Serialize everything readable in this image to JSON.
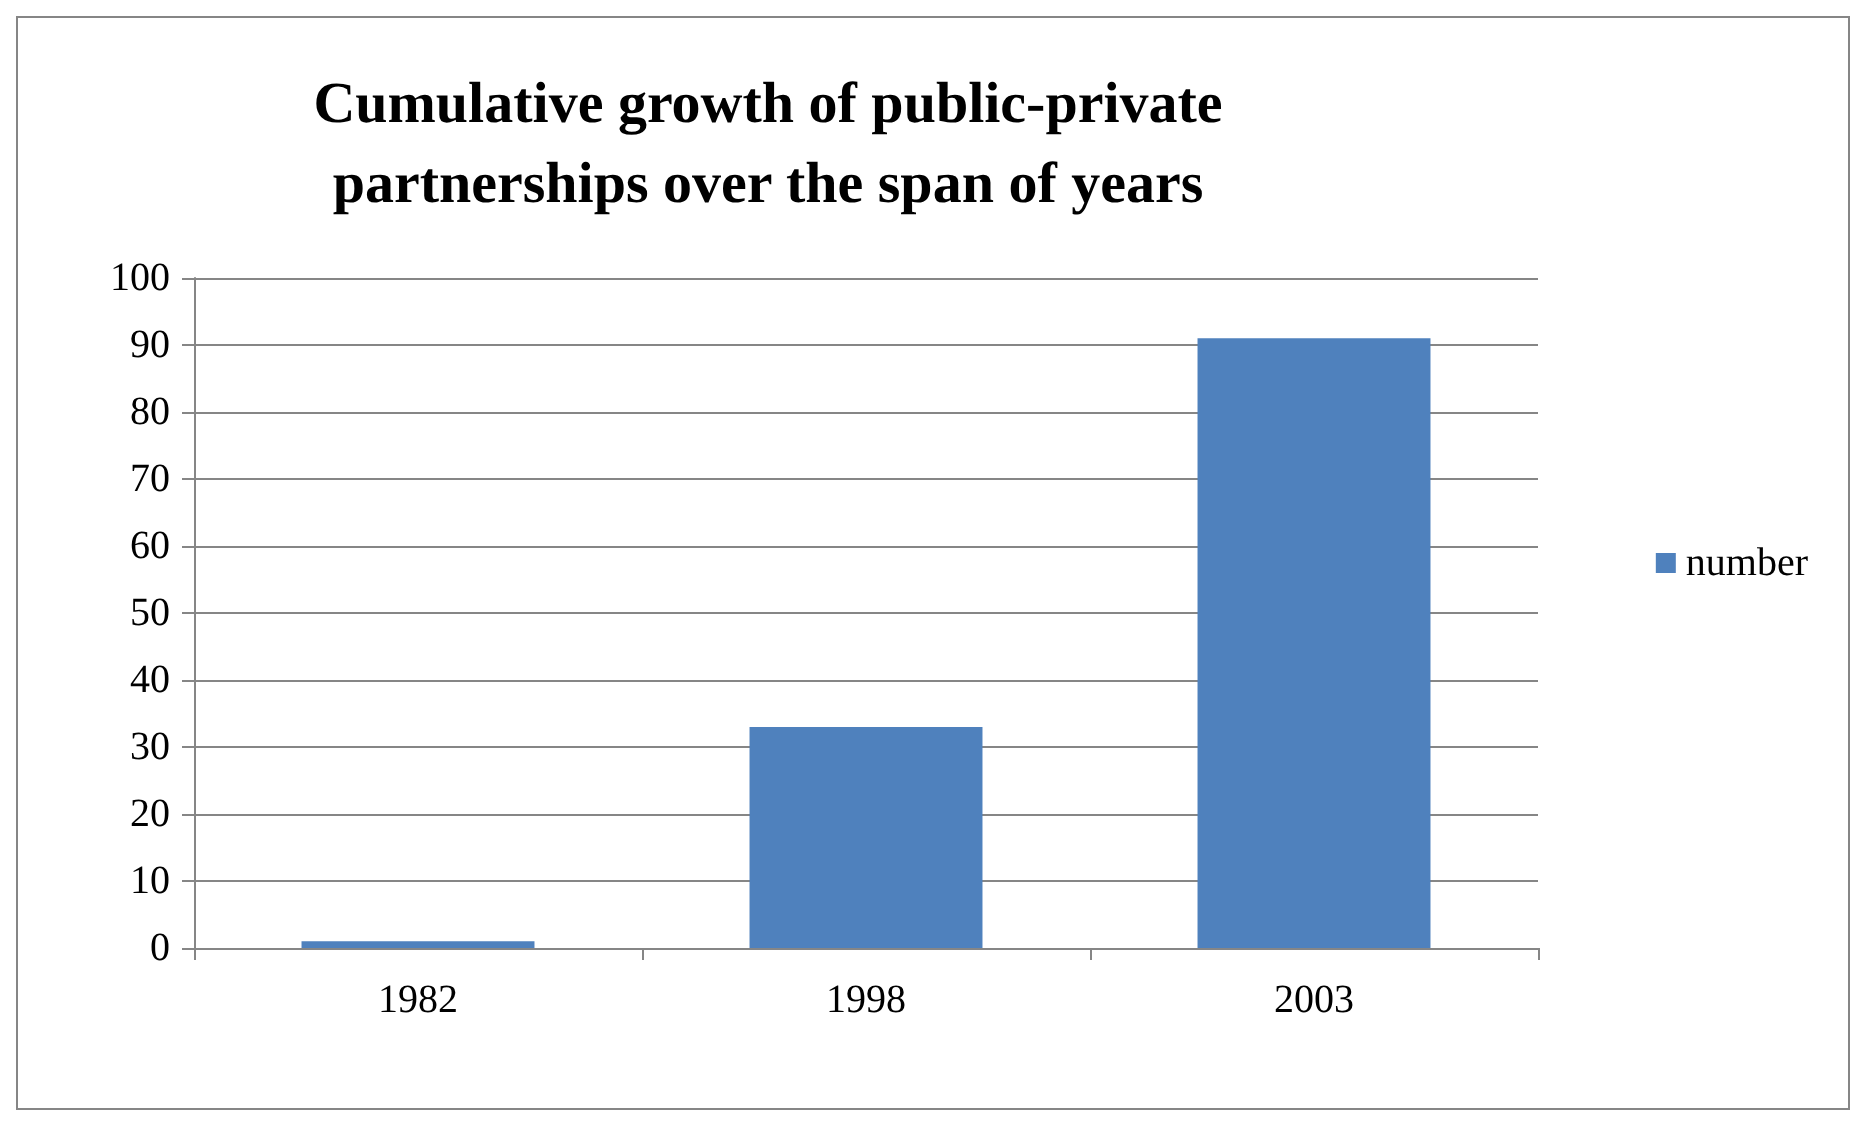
{
  "chart_data": {
    "type": "bar",
    "title": "Cumulative growth of public-private\npartnerships over the span of years",
    "categories": [
      "1982",
      "1998",
      "2003"
    ],
    "series": [
      {
        "name": "number",
        "color": "#4f81bd",
        "values": [
          1,
          33,
          91
        ]
      }
    ],
    "ylim": [
      0,
      100
    ],
    "yticks": [
      0,
      10,
      20,
      30,
      40,
      50,
      60,
      70,
      80,
      90,
      100
    ],
    "grid": "y",
    "legend": "right"
  }
}
